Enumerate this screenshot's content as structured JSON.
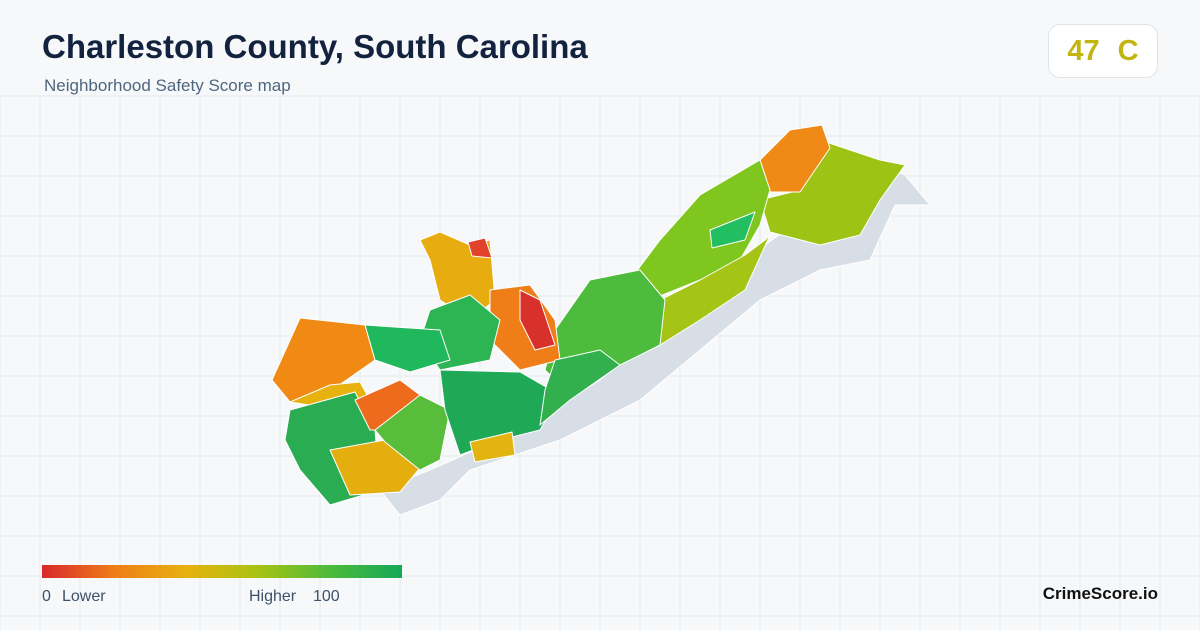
{
  "header": {
    "title": "Charleston County, South Carolina",
    "subtitle": "Neighborhood Safety Score map"
  },
  "score": {
    "value": 47,
    "grade": "C"
  },
  "legend": {
    "min": 0,
    "min_label": "Lower",
    "max_label": "Higher",
    "max": 100
  },
  "brand": "CrimeScore.io"
}
